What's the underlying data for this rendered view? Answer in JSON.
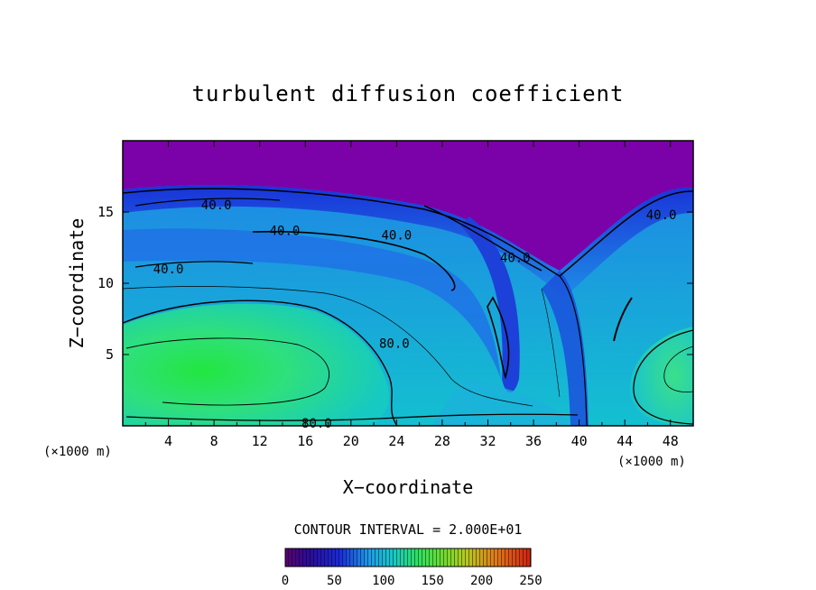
{
  "chart_data": {
    "type": "heatmap",
    "title": "turbulent diffusion coefficient",
    "xlabel": "X−coordinate",
    "ylabel": "Z−coordinate",
    "x_unit": "(×1000 m)",
    "z_unit": "(×1000 m)",
    "xlim": [
      0,
      50
    ],
    "ylim": [
      0,
      20
    ],
    "x_ticks": [
      "4",
      "8",
      "12",
      "16",
      "20",
      "24",
      "28",
      "32",
      "36",
      "40",
      "44",
      "48"
    ],
    "y_ticks": [
      "5",
      "10",
      "15"
    ],
    "contour_interval_text": "CONTOUR INTERVAL = 2.000E+01",
    "contour_labels": [
      {
        "text": "40.0",
        "x": 8.2,
        "y": 15.5
      },
      {
        "text": "40.0",
        "x": 14.2,
        "y": 13.7
      },
      {
        "text": "40.0",
        "x": 24.0,
        "y": 13.4
      },
      {
        "text": "40.0",
        "x": 34.4,
        "y": 11.8
      },
      {
        "text": "40.0",
        "x": 47.2,
        "y": 14.8
      },
      {
        "text": "40.0",
        "x": 4.0,
        "y": 11.0
      },
      {
        "text": "80.0",
        "x": 23.8,
        "y": 5.8
      },
      {
        "text": "80.0",
        "x": 17.0,
        "y": 0.2
      }
    ],
    "colorbar": {
      "range": [
        0,
        250
      ],
      "ticks": [
        "0",
        "50",
        "100",
        "150",
        "200",
        "250"
      ]
    }
  }
}
